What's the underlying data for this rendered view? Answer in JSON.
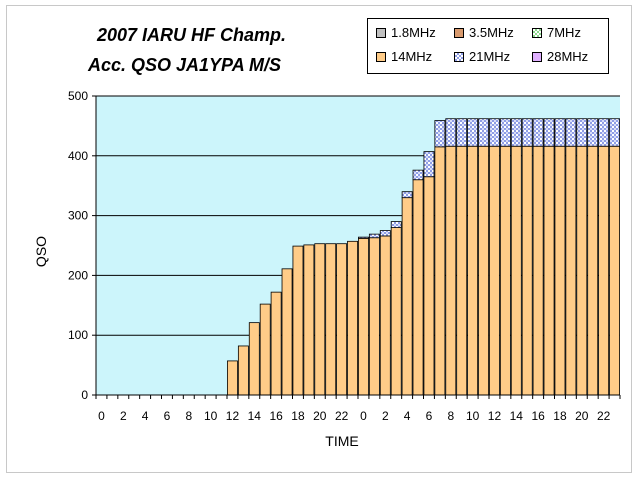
{
  "chart_data": {
    "type": "bar",
    "stacked": true,
    "title": [
      "2007 IARU HF Champ.",
      "Acc. QSO  JA1YPA  M/S"
    ],
    "xlabel": "TIME",
    "ylabel": "QSO",
    "ylim": [
      0,
      500
    ],
    "yticks": [
      "0",
      "100",
      "200",
      "300",
      "400",
      "500"
    ],
    "categories": [
      "0",
      "1",
      "2",
      "3",
      "4",
      "5",
      "6",
      "7",
      "8",
      "9",
      "10",
      "11",
      "12",
      "13",
      "14",
      "15",
      "16",
      "17",
      "18",
      "19",
      "20",
      "21",
      "22",
      "23",
      "0",
      "1",
      "2",
      "3",
      "4",
      "5",
      "6",
      "7",
      "8",
      "9",
      "10",
      "11",
      "12",
      "13",
      "14",
      "15",
      "16",
      "17",
      "18",
      "19",
      "20",
      "21",
      "22",
      "23"
    ],
    "xtick_labels": [
      "0",
      "2",
      "4",
      "6",
      "8",
      "10",
      "12",
      "14",
      "16",
      "18",
      "20",
      "22",
      "0",
      "2",
      "4",
      "6",
      "8",
      "10",
      "12",
      "14",
      "16",
      "18",
      "20",
      "22"
    ],
    "grid": true,
    "legend_position": "top-right",
    "plot_background": "#ccf5fb",
    "series": [
      {
        "name": "1.8MHz",
        "color": "#c0c0c0",
        "pattern": "solid",
        "values": [
          0,
          0,
          0,
          0,
          0,
          0,
          0,
          0,
          0,
          0,
          0,
          0,
          0,
          0,
          0,
          0,
          0,
          0,
          0,
          0,
          0,
          0,
          0,
          0,
          0,
          0,
          0,
          0,
          0,
          0,
          0,
          0,
          0,
          0,
          0,
          0,
          0,
          0,
          0,
          0,
          0,
          0,
          0,
          0,
          0,
          0,
          0,
          0
        ]
      },
      {
        "name": "3.5MHz",
        "color": "#d89a6e",
        "pattern": "solid",
        "values": [
          0,
          0,
          0,
          0,
          0,
          0,
          0,
          0,
          0,
          0,
          0,
          0,
          0,
          0,
          0,
          0,
          0,
          0,
          0,
          0,
          0,
          0,
          0,
          0,
          0,
          0,
          0,
          0,
          0,
          0,
          0,
          0,
          0,
          0,
          0,
          0,
          0,
          0,
          0,
          0,
          0,
          0,
          0,
          0,
          0,
          0,
          0,
          0
        ]
      },
      {
        "name": "7MHz",
        "color": "#8cd98c",
        "pattern": "check",
        "values": [
          0,
          0,
          0,
          0,
          0,
          0,
          0,
          0,
          0,
          0,
          0,
          0,
          0,
          0,
          0,
          0,
          0,
          0,
          0,
          0,
          0,
          0,
          0,
          0,
          0,
          0,
          0,
          0,
          0,
          0,
          0,
          0,
          0,
          0,
          0,
          0,
          0,
          0,
          0,
          0,
          0,
          0,
          0,
          0,
          0,
          0,
          0,
          0
        ]
      },
      {
        "name": "14MHz",
        "color": "#ffcc88",
        "pattern": "solid",
        "values": [
          0,
          0,
          0,
          0,
          0,
          0,
          0,
          0,
          0,
          0,
          0,
          0,
          57,
          82,
          121,
          152,
          172,
          211,
          249,
          251,
          253,
          253,
          253,
          257,
          262,
          263,
          266,
          280,
          330,
          360,
          365,
          415,
          416,
          416,
          416,
          416,
          416,
          416,
          416,
          416,
          416,
          416,
          416,
          416,
          416,
          416,
          416,
          416
        ]
      },
      {
        "name": "21MHz",
        "color": "#8f9ee6",
        "pattern": "check",
        "values": [
          0,
          0,
          0,
          0,
          0,
          0,
          0,
          0,
          0,
          0,
          0,
          0,
          0,
          0,
          0,
          0,
          0,
          0,
          0,
          0,
          0,
          0,
          0,
          0,
          2,
          6,
          9,
          10,
          10,
          16,
          42,
          44,
          46,
          46,
          46,
          46,
          46,
          46,
          46,
          46,
          46,
          46,
          46,
          46,
          46,
          46,
          46,
          46
        ]
      },
      {
        "name": "28MHz",
        "color": "#e0b0ff",
        "pattern": "solid",
        "values": [
          0,
          0,
          0,
          0,
          0,
          0,
          0,
          0,
          0,
          0,
          0,
          0,
          0,
          0,
          0,
          0,
          0,
          0,
          0,
          0,
          0,
          0,
          0,
          0,
          0,
          0,
          0,
          0,
          0,
          0,
          0,
          0,
          0,
          0,
          0,
          0,
          0,
          0,
          0,
          0,
          0,
          0,
          0,
          0,
          0,
          0,
          0,
          0
        ]
      }
    ]
  }
}
